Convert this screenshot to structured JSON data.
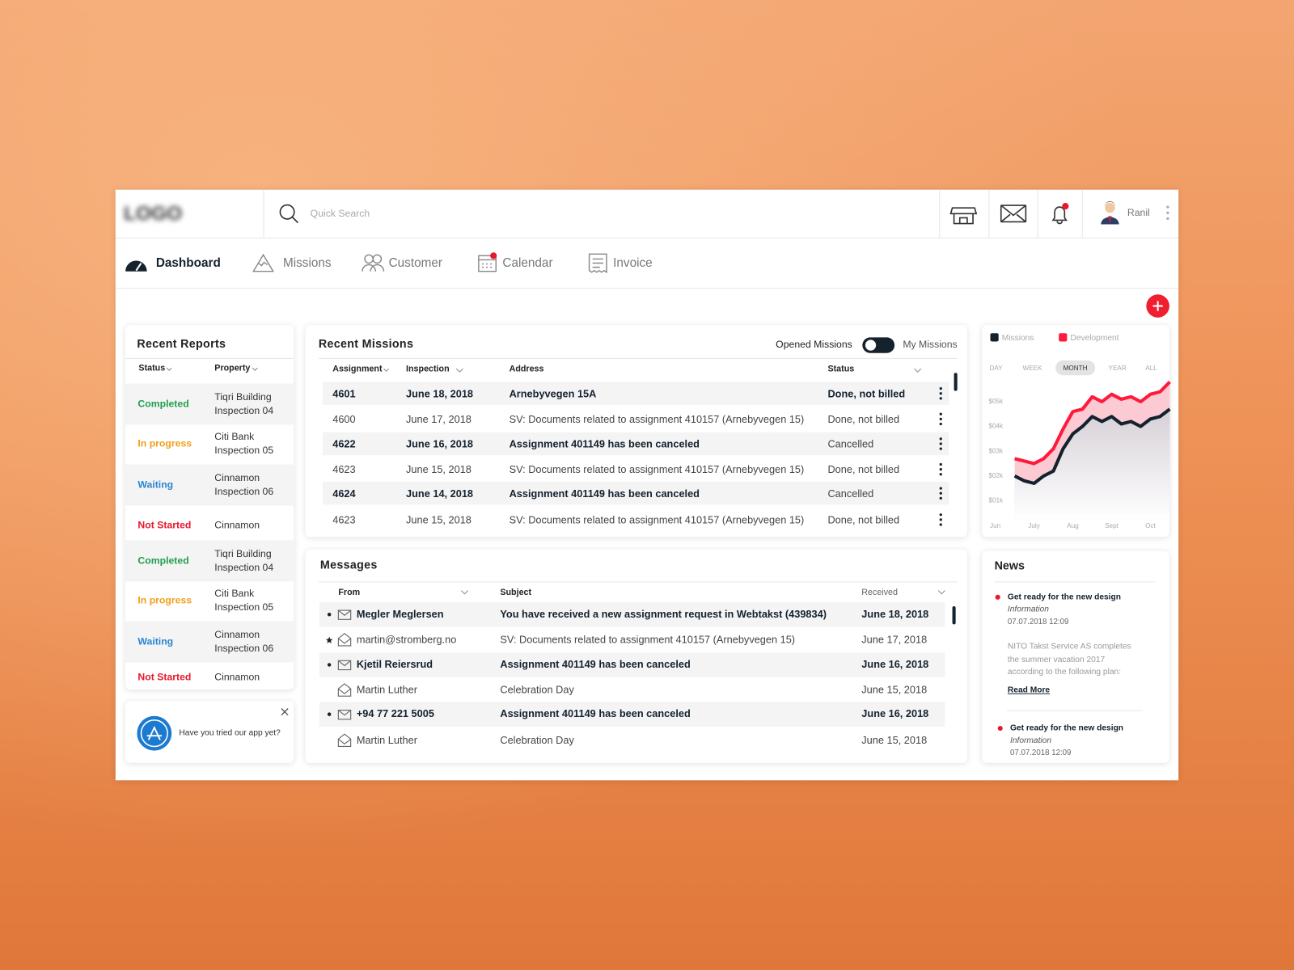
{
  "header": {
    "logo": "LOGO",
    "search_placeholder": "Quick Search",
    "user": "Ranil"
  },
  "nav": [
    "Dashboard",
    "Missions",
    "Customer",
    "Calendar",
    "Invoice"
  ],
  "recent_reports": {
    "title": "Recent Reports",
    "columns": [
      "Status",
      "Property"
    ],
    "rows": [
      {
        "status": "Completed",
        "property": "Tiqri Building Inspection 04",
        "color": "#1e9e4a"
      },
      {
        "status": "In progress",
        "property": "Citi Bank Inspection 05",
        "color": "#f0a01c"
      },
      {
        "status": "Waiting",
        "property": "Cinnamon Inspection 06",
        "color": "#2b86d1"
      },
      {
        "status": "Not Started",
        "property": "Cinnamon",
        "color": "#e6192c"
      },
      {
        "status": "Completed",
        "property": "Tiqri Building Inspection 04",
        "color": "#1e9e4a"
      },
      {
        "status": "In progress",
        "property": "Citi Bank Inspection 05",
        "color": "#f0a01c"
      },
      {
        "status": "Waiting",
        "property": "Cinnamon Inspection 06",
        "color": "#2b86d1"
      },
      {
        "status": "Not Started",
        "property": "Cinnamon",
        "color": "#e6192c"
      }
    ]
  },
  "app_promo": "Have you tried our app yet?",
  "recent_missions": {
    "title": "Recent Missions",
    "toggle_left": "Opened Missions",
    "toggle_right": "My Missions",
    "columns": [
      "Assignment",
      "Inspection",
      "Address",
      "Status"
    ],
    "rows": [
      [
        "4601",
        "June 18, 2018",
        "Arnebyvegen 15A",
        "Done, not billed"
      ],
      [
        "4600",
        "June 17, 2018",
        "SV: Documents related to assignment 410157 (Arnebyvegen 15)",
        "Done, not billed"
      ],
      [
        "4622",
        "June 16, 2018",
        "Assignment 401149 has been canceled",
        "Cancelled"
      ],
      [
        "4623",
        "June 15, 2018",
        "SV: Documents related to assignment 410157 (Arnebyvegen 15)",
        "Done, not billed"
      ],
      [
        "4624",
        "June 14, 2018",
        "Assignment 401149 has been canceled",
        "Cancelled"
      ],
      [
        "4623",
        "June 15, 2018",
        "SV: Documents related to assignment 410157 (Arnebyvegen 15)",
        "Done, not billed"
      ]
    ]
  },
  "messages": {
    "title": "Messages",
    "columns": [
      "From",
      "Subject",
      "Received"
    ],
    "rows": [
      [
        "Megler Meglersen",
        "You have received a new assignment request in Webtakst (439834)",
        "June 18, 2018"
      ],
      [
        "martin@stromberg.no",
        "SV: Documents related to assignment 410157 (Arnebyvegen 15)",
        "June 17, 2018"
      ],
      [
        "Kjetil Reiersrud",
        "Assignment 401149 has been canceled",
        "June 16, 2018"
      ],
      [
        "Martin Luther",
        "Celebration Day",
        "June 15, 2018"
      ],
      [
        "+94 77 221 5005",
        "Assignment 401149 has been canceled",
        "June 16, 2018"
      ],
      [
        "Martin Luther",
        "Celebration Day",
        "June 15, 2018"
      ]
    ]
  },
  "chart": {
    "type": "line",
    "tabs": [
      "DAY",
      "WEEK",
      "MONTH",
      "YEAR",
      "ALL"
    ],
    "active_tab": 2,
    "categories": [
      "Jun",
      null,
      null,
      null,
      "July",
      null,
      null,
      null,
      "Aug",
      null,
      null,
      null,
      "Sept",
      null,
      null,
      null,
      "Oct",
      null,
      null
    ],
    "ylim": [
      0,
      6000
    ],
    "yticks": [
      {
        "value": 5000,
        "label": "$05k"
      },
      {
        "value": 4000,
        "label": "$04k"
      },
      {
        "value": 3000,
        "label": "$03k"
      },
      {
        "value": 2000,
        "label": "$02k"
      },
      {
        "value": 1000,
        "label": "$01k"
      }
    ],
    "series": [
      {
        "name": "Missions",
        "color": "#14222e",
        "values": [
          null,
          null,
          2000,
          1800,
          1700,
          2000,
          2200,
          3100,
          3700,
          4000,
          4400,
          4200,
          4400,
          4100,
          4200,
          4000,
          4300,
          4400,
          4700
        ]
      },
      {
        "name": "Development",
        "color": "#ff1a3c",
        "values": [
          null,
          null,
          2700,
          2600,
          2500,
          2700,
          3100,
          3900,
          4600,
          4700,
          5200,
          5000,
          5300,
          5100,
          5200,
          5000,
          5300,
          5400,
          5800
        ]
      }
    ]
  },
  "news": {
    "title": "News",
    "items": [
      {
        "title": "Get ready for the new design",
        "category": "Information",
        "date": "07.07.2018 12:09",
        "body": [
          "NITO Takst Service AS completes",
          "the summer vacation 2017",
          "according to the following plan:"
        ],
        "link": "Read More"
      },
      {
        "title": "Get ready for the new design",
        "category": "Information",
        "date": "07.07.2018 12:09"
      }
    ]
  }
}
